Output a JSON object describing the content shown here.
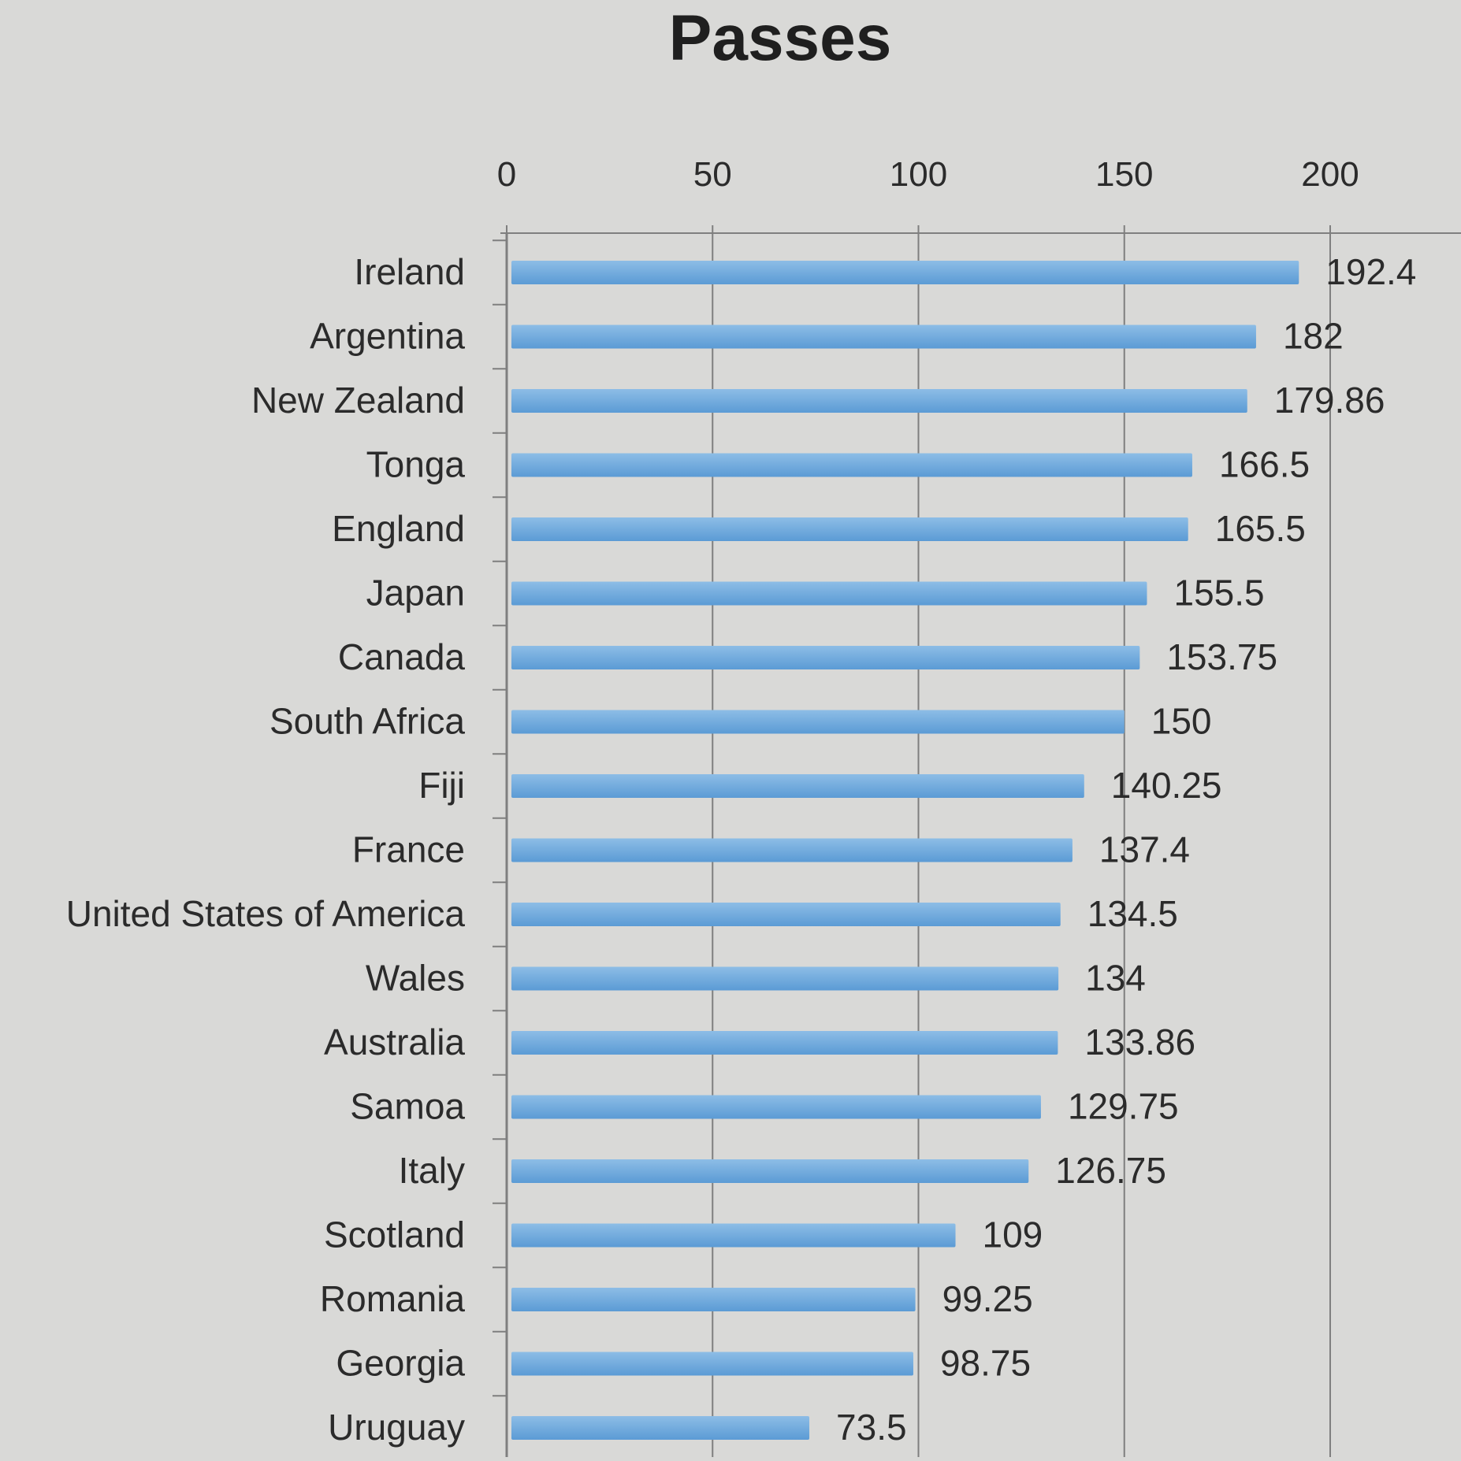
{
  "chart_data": {
    "type": "bar",
    "orientation": "horizontal",
    "title": "Passes",
    "xlabel": "",
    "ylabel": "",
    "xlim": [
      0,
      200
    ],
    "x_ticks": [
      0,
      50,
      100,
      150,
      200
    ],
    "x_tick_labels": [
      "0",
      "50",
      "100",
      "150",
      "200"
    ],
    "x_axis_position": "top",
    "grid": true,
    "legend": "none",
    "categories": [
      "Ireland",
      "Argentina",
      "New Zealand",
      "Tonga",
      "England",
      "Japan",
      "Canada",
      "South Africa",
      "Fiji",
      "France",
      "United States of America",
      "Wales",
      "Australia",
      "Samoa",
      "Italy",
      "Scotland",
      "Romania",
      "Georgia",
      "Uruguay"
    ],
    "values": [
      192.4,
      182,
      179.86,
      166.5,
      165.5,
      155.5,
      153.75,
      150,
      140.25,
      137.4,
      134.5,
      134,
      133.86,
      129.75,
      126.75,
      109,
      99.25,
      98.75,
      73.5
    ],
    "data_labels": [
      "192.4",
      "182",
      "179.86",
      "166.5",
      "165.5",
      "155.5",
      "153.75",
      "150",
      "140.25",
      "137.4",
      "134.5",
      "134",
      "133.86",
      "129.75",
      "126.75",
      "109",
      "99.25",
      "98.75",
      "73.5"
    ],
    "colors": {
      "bar": "#5b9bd5",
      "bar_highlight": "#8dbde6",
      "background": "#d9d9d7",
      "grid": "#7f7f7f",
      "text": "#2b2b2b"
    }
  }
}
